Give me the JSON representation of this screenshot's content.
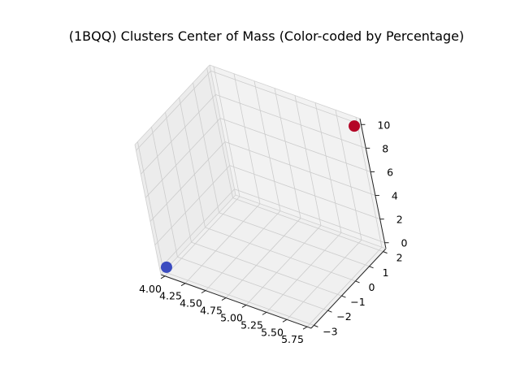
{
  "chart_data": {
    "type": "scatter",
    "projection": "3d",
    "title": "(1BQQ) Clusters Center of Mass (Color-coded by Percentage)",
    "xlabel": "",
    "ylabel": "",
    "zlabel": "",
    "xlim": [
      3.95,
      5.8
    ],
    "ylim": [
      -3.2,
      2.2
    ],
    "zlim": [
      -0.5,
      10.5
    ],
    "x_ticks": [
      "4.00",
      "4.25",
      "4.50",
      "4.75",
      "5.00",
      "5.25",
      "5.50",
      "5.75"
    ],
    "y_ticks": [
      "−3",
      "−2",
      "−1",
      "0",
      "1",
      "2"
    ],
    "z_ticks": [
      "0",
      "2",
      "4",
      "6",
      "8",
      "10"
    ],
    "grid": true,
    "points": [
      {
        "x": 4.0,
        "y": -3.0,
        "z": 0.0,
        "color": "#3b4cc0"
      },
      {
        "x": 5.75,
        "y": 2.0,
        "z": 10.0,
        "color": "#b40426"
      }
    ],
    "pane_color": "#f2f2f2",
    "grid_color": "#cccccc"
  }
}
